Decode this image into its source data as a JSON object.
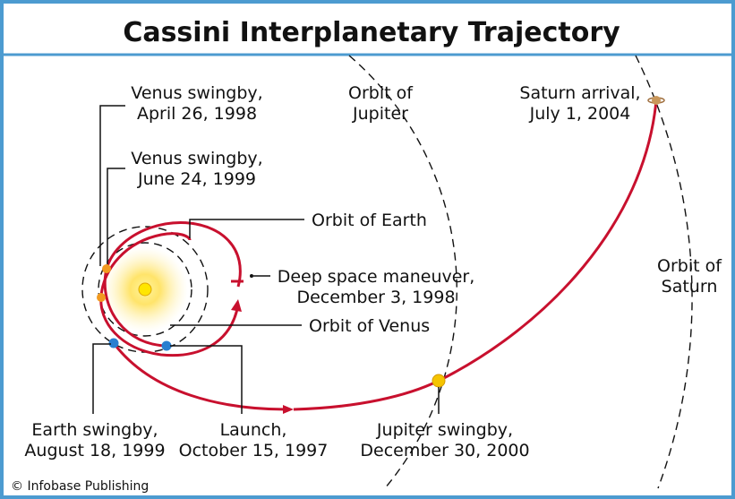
{
  "title": "Cassini Interplanetary Trajectory",
  "labels": [
    {
      "lines": [
        "Venus swingby,",
        "April 26, 1998"
      ]
    },
    {
      "lines": [
        "Venus swingby,",
        "June 24, 1999"
      ]
    },
    {
      "lines": [
        "Orbit of",
        "Jupiter"
      ]
    },
    {
      "lines": [
        "Saturn arrival,",
        "July 1, 2004"
      ]
    },
    {
      "lines": [
        "Orbit of Earth"
      ]
    },
    {
      "lines": [
        "Deep space maneuver,",
        "December 3, 1998"
      ]
    },
    {
      "lines": [
        "Orbit of Venus"
      ]
    },
    {
      "lines": [
        "Orbit of",
        "Saturn"
      ]
    },
    {
      "lines": [
        "Earth swingby,",
        "August 18, 1999"
      ]
    },
    {
      "lines": [
        "Launch,",
        "October 15, 1997"
      ]
    },
    {
      "lines": [
        "Jupiter swingby,",
        "December 30, 2000"
      ]
    }
  ],
  "credit": "© Infobase Publishing"
}
